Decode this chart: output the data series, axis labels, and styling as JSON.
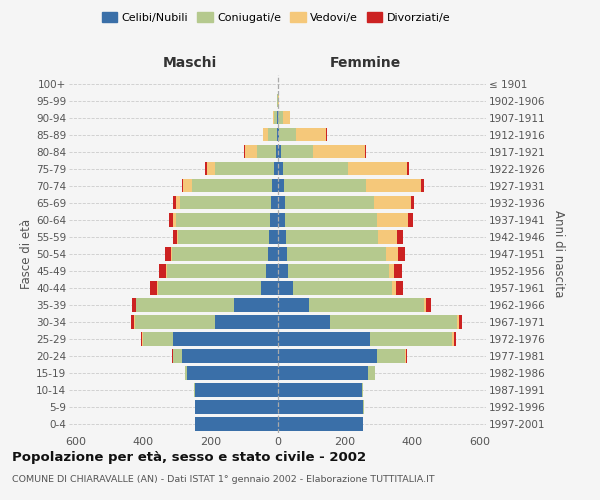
{
  "age_groups": [
    "0-4",
    "5-9",
    "10-14",
    "15-19",
    "20-24",
    "25-29",
    "30-34",
    "35-39",
    "40-44",
    "45-49",
    "50-54",
    "55-59",
    "60-64",
    "65-69",
    "70-74",
    "75-79",
    "80-84",
    "85-89",
    "90-94",
    "95-99",
    "100+"
  ],
  "birth_years": [
    "1997-2001",
    "1992-1996",
    "1987-1991",
    "1982-1986",
    "1977-1981",
    "1972-1976",
    "1967-1971",
    "1962-1966",
    "1957-1961",
    "1952-1956",
    "1947-1951",
    "1942-1946",
    "1937-1941",
    "1932-1936",
    "1927-1931",
    "1922-1926",
    "1917-1921",
    "1912-1916",
    "1907-1911",
    "1902-1906",
    "≤ 1901"
  ],
  "male_celibe": [
    245,
    245,
    245,
    270,
    285,
    310,
    185,
    130,
    50,
    35,
    28,
    25,
    22,
    20,
    15,
    10,
    4,
    2,
    1,
    0,
    0
  ],
  "male_coniugato": [
    0,
    0,
    2,
    5,
    25,
    90,
    240,
    290,
    305,
    295,
    285,
    270,
    280,
    270,
    240,
    175,
    58,
    25,
    8,
    2,
    0
  ],
  "male_vedovo": [
    0,
    0,
    0,
    0,
    0,
    2,
    3,
    2,
    2,
    2,
    3,
    5,
    8,
    12,
    25,
    25,
    35,
    15,
    5,
    0,
    0
  ],
  "male_divorziato": [
    0,
    0,
    0,
    0,
    3,
    5,
    8,
    10,
    22,
    20,
    18,
    12,
    12,
    8,
    5,
    5,
    4,
    2,
    0,
    0,
    0
  ],
  "female_nubile": [
    255,
    255,
    250,
    270,
    295,
    275,
    155,
    95,
    45,
    32,
    28,
    25,
    22,
    22,
    18,
    15,
    10,
    5,
    2,
    0,
    0
  ],
  "female_coniugata": [
    0,
    2,
    5,
    20,
    85,
    245,
    380,
    340,
    295,
    300,
    295,
    275,
    275,
    265,
    245,
    195,
    95,
    50,
    15,
    2,
    0
  ],
  "female_vedova": [
    0,
    0,
    0,
    0,
    2,
    5,
    5,
    8,
    12,
    15,
    35,
    55,
    90,
    110,
    165,
    175,
    155,
    90,
    20,
    3,
    0
  ],
  "female_divorziata": [
    0,
    0,
    0,
    0,
    3,
    5,
    10,
    12,
    20,
    22,
    22,
    18,
    15,
    10,
    8,
    5,
    2,
    2,
    0,
    0,
    0
  ],
  "colors": {
    "celibe": "#3a6fa8",
    "coniugato": "#b5c98e",
    "vedovo": "#f5c87a",
    "divorziato": "#cc2222"
  },
  "legend_labels": [
    "Celibi/Nubili",
    "Coniugati/e",
    "Vedovi/e",
    "Divorziati/e"
  ],
  "title": "Popolazione per età, sesso e stato civile - 2002",
  "subtitle": "COMUNE DI CHIARAVALLE (AN) - Dati ISTAT 1° gennaio 2002 - Elaborazione TUTTITALIA.IT",
  "xlabel_left": "Maschi",
  "xlabel_right": "Femmine",
  "ylabel_left": "Fasce di età",
  "ylabel_right": "Anni di nascita",
  "xlim": 620,
  "bg_color": "#f5f5f5",
  "grid_color": "#cccccc"
}
